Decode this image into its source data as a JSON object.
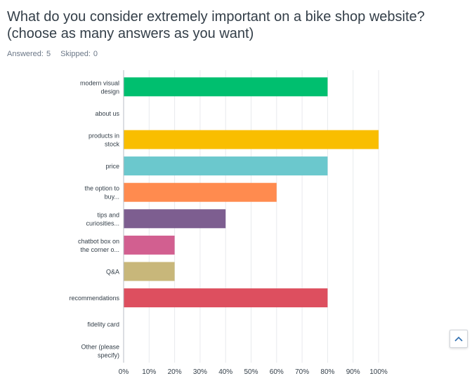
{
  "question": {
    "title": "What do you consider extremely important on a bike shop website? (choose as many answers as you want)"
  },
  "stats": {
    "answered_label": "Answered:",
    "answered_value": "5",
    "skipped_label": "Skipped:",
    "skipped_value": "0"
  },
  "scroll_top": {
    "icon": "chevron-up-icon"
  },
  "chart_data": {
    "type": "bar",
    "orientation": "horizontal",
    "categories": [
      [
        "modern visual",
        "design"
      ],
      [
        "about us"
      ],
      [
        "products in",
        "stock"
      ],
      [
        "price"
      ],
      [
        "the option to",
        "buy..."
      ],
      [
        "tips and",
        "curiosities..."
      ],
      [
        "chatbot box on",
        "the corner o..."
      ],
      [
        "Q&A"
      ],
      [
        "recommendations"
      ],
      [
        "fidelity card"
      ],
      [
        "Other (please",
        "specify)"
      ]
    ],
    "values": [
      80,
      0,
      100,
      80,
      60,
      40,
      20,
      20,
      80,
      0,
      0
    ],
    "colors": [
      "#00bf6f",
      "#507cb6",
      "#f9be00",
      "#6bc8cd",
      "#ff8b4f",
      "#7d5e90",
      "#d25f90",
      "#c8b77a",
      "#dd4f5f",
      "#5b9bd5",
      "#a3b7d8"
    ],
    "xlim": [
      0,
      100
    ],
    "xticks": [
      "0%",
      "10%",
      "20%",
      "30%",
      "40%",
      "50%",
      "60%",
      "70%",
      "80%",
      "90%",
      "100%"
    ],
    "grid": true,
    "legend": "none"
  }
}
